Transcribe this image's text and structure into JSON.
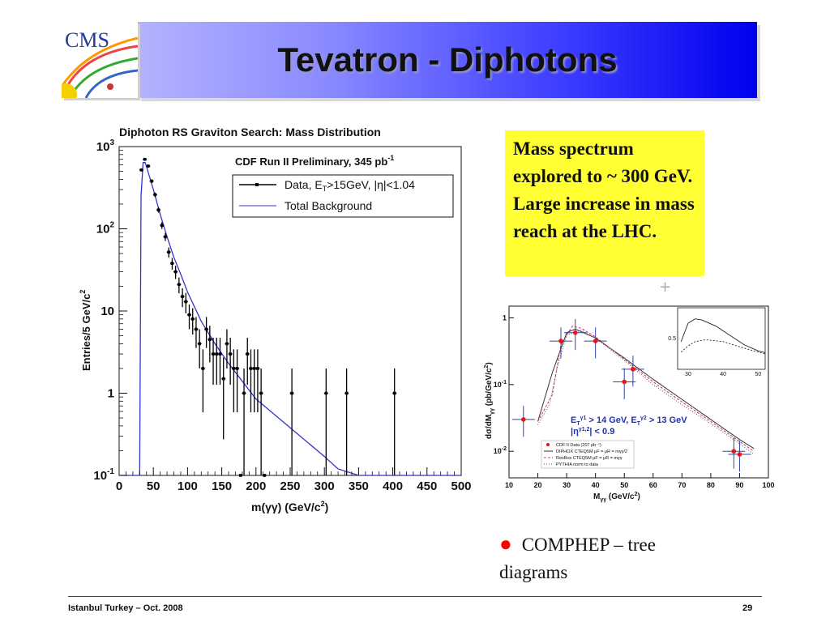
{
  "slide": {
    "title": "Tevatron - Diphotons",
    "logo_text": "CMS",
    "note": "Mass spectrum explored to ~ 300 GeV. Large increase in mass reach at the LHC.",
    "bullet_text": "COMPHEP – tree diagrams",
    "footer_left": "Istanbul Turkey – Oct. 2008",
    "footer_right": "29",
    "plus_mark": "+"
  },
  "colors": {
    "title_bar_end": "#0000ee",
    "note_bg": "#ffff33",
    "data_line": "#000000",
    "background_line": "#3333cc",
    "bullet": "#ff0000"
  },
  "chart_data": [
    {
      "type": "line",
      "title": "Diphoton RS Graviton Search: Mass Distribution",
      "header": "CDF Run II Preliminary, 345 pb",
      "header_sup": "-1",
      "xlabel": "m(γγ) (GeV/c",
      "xlabel_sup": "2",
      "xlabel_end": ")",
      "ylabel": "Entries/5 GeV/c",
      "ylabel_sup": "2",
      "log_y": true,
      "xlim": [
        0,
        500
      ],
      "ylim": [
        0.1,
        1000
      ],
      "xticks": [
        0,
        50,
        100,
        150,
        200,
        250,
        300,
        350,
        400,
        450,
        500
      ],
      "yticks": [
        {
          "v": 0.1,
          "b": "10",
          "e": "-1"
        },
        {
          "v": 1,
          "b": "1",
          "e": ""
        },
        {
          "v": 10,
          "b": "10",
          "e": ""
        },
        {
          "v": 100,
          "b": "10",
          "e": "2"
        },
        {
          "v": 1000,
          "b": "10",
          "e": "3"
        }
      ],
      "legend": [
        {
          "name": "Data, E",
          "sub": "T",
          "rest": ">15GeV, |η|<1.04"
        },
        {
          "name": "Total Background"
        }
      ],
      "series": [
        {
          "name": "Data",
          "points": [
            [
              32.5,
              520
            ],
            [
              37.5,
              700
            ],
            [
              42.5,
              580
            ],
            [
              47.5,
              380
            ],
            [
              52.5,
              260
            ],
            [
              57.5,
              170
            ],
            [
              62.5,
              110
            ],
            [
              67.5,
              80
            ],
            [
              72.5,
              52
            ],
            [
              77.5,
              38
            ],
            [
              82.5,
              30
            ],
            [
              87.5,
              21
            ],
            [
              92.5,
              15
            ],
            [
              97.5,
              13
            ],
            [
              102.5,
              9
            ],
            [
              107.5,
              8
            ],
            [
              112.5,
              6
            ],
            [
              117.5,
              4
            ],
            [
              122.5,
              2
            ],
            [
              127.5,
              6
            ],
            [
              132.5,
              4.5
            ],
            [
              137.5,
              3
            ],
            [
              142.5,
              3
            ],
            [
              147.5,
              3
            ],
            [
              152.5,
              1.5
            ],
            [
              157.5,
              4
            ],
            [
              162.5,
              3
            ],
            [
              167.5,
              2
            ],
            [
              172.5,
              2
            ],
            [
              177.5,
              0.1
            ],
            [
              182.5,
              1
            ],
            [
              187.5,
              3
            ],
            [
              192.5,
              2
            ],
            [
              197.5,
              2
            ],
            [
              202.5,
              2
            ],
            [
              207.5,
              1
            ],
            [
              212.5,
              0.1
            ],
            [
              252.5,
              1
            ],
            [
              302.5,
              1
            ],
            [
              332.5,
              1
            ],
            [
              402.5,
              1
            ]
          ]
        },
        {
          "name": "Total Background",
          "points": [
            [
              0,
              0.1
            ],
            [
              30,
              0.1
            ],
            [
              32,
              250
            ],
            [
              35,
              640
            ],
            [
              38,
              640
            ],
            [
              40,
              570
            ],
            [
              50,
              300
            ],
            [
              60,
              150
            ],
            [
              70,
              80
            ],
            [
              80,
              45
            ],
            [
              90,
              28
            ],
            [
              100,
              17
            ],
            [
              120,
              7.5
            ],
            [
              140,
              4
            ],
            [
              160,
              2.3
            ],
            [
              180,
              1.4
            ],
            [
              200,
              0.85
            ],
            [
              250,
              0.38
            ],
            [
              300,
              0.17
            ],
            [
              320,
              0.12
            ],
            [
              350,
              0.1
            ],
            [
              500,
              0.1
            ]
          ]
        }
      ]
    },
    {
      "type": "line",
      "xlabel": "M",
      "xlabel_sub": "γγ",
      "xlabel_rest": " (GeV/c",
      "xlabel_sup": "2",
      "xlabel_end": ")",
      "ylabel": "dσ/dM",
      "ylabel_sub": "γγ",
      "ylabel_rest": " (pb/GeV/c",
      "ylabel_sup": "2",
      "ylabel_end": ")",
      "log_y": true,
      "xlim": [
        10,
        100
      ],
      "ylim": [
        0.004,
        1.5
      ],
      "xticks": [
        10,
        20,
        30,
        40,
        50,
        60,
        70,
        80,
        90,
        100
      ],
      "yticks": [
        {
          "v": 1,
          "b": "1",
          "e": ""
        },
        {
          "v": 0.1,
          "b": "10",
          "e": "-1"
        },
        {
          "v": 0.01,
          "b": "10",
          "e": "-2"
        }
      ],
      "cut_text_1": "E",
      "cut_text_1b": "T",
      "cut_text_1c": "γ1",
      "cut_text_1d": " > 14 GeV, E",
      "cut_text_1e": "T",
      "cut_text_1f": "γ2",
      "cut_text_1g": " > 13 GeV",
      "cut_text_2": "|η",
      "cut_text_2b": "γ1,2",
      "cut_text_2c": "| < 0.9",
      "legend": [
        {
          "name": "CDF II Data (207 pb⁻¹)"
        },
        {
          "name": "DIPHOX CTEQ5M μF = μR = mγγ/2"
        },
        {
          "name": "ResBos CTEQ5M μF = μR = mγγ"
        },
        {
          "name": "PYTHIA norm to data"
        }
      ],
      "series": [
        {
          "name": "CDF II Data",
          "points": [
            [
              15,
              0.03
            ],
            [
              28,
              0.45
            ],
            [
              33,
              0.6
            ],
            [
              40,
              0.45
            ],
            [
              50,
              0.11
            ],
            [
              53,
              0.17
            ],
            [
              88,
              0.01
            ],
            [
              90,
              0.009
            ]
          ]
        },
        {
          "name": "DIPHOX",
          "points": [
            [
              20,
              0.028
            ],
            [
              25,
              0.15
            ],
            [
              30,
              0.6
            ],
            [
              33,
              0.68
            ],
            [
              40,
              0.5
            ],
            [
              50,
              0.25
            ],
            [
              60,
              0.12
            ],
            [
              70,
              0.06
            ],
            [
              80,
              0.03
            ],
            [
              90,
              0.015
            ],
            [
              95,
              0.011
            ]
          ]
        },
        {
          "name": "ResBos",
          "points": [
            [
              20,
              0.028
            ],
            [
              25,
              0.07
            ],
            [
              28,
              0.4
            ],
            [
              32,
              0.75
            ],
            [
              35,
              0.7
            ],
            [
              40,
              0.52
            ],
            [
              50,
              0.24
            ],
            [
              60,
              0.11
            ],
            [
              70,
              0.055
            ],
            [
              80,
              0.028
            ],
            [
              90,
              0.014
            ],
            [
              95,
              0.01
            ]
          ]
        },
        {
          "name": "PYTHIA",
          "points": [
            [
              20,
              0.025
            ],
            [
              24,
              0.05
            ],
            [
              27,
              0.2
            ],
            [
              30,
              0.55
            ],
            [
              35,
              0.65
            ],
            [
              40,
              0.5
            ],
            [
              50,
              0.23
            ],
            [
              60,
              0.1
            ],
            [
              70,
              0.05
            ],
            [
              80,
              0.026
            ],
            [
              90,
              0.013
            ],
            [
              95,
              0.009
            ]
          ]
        }
      ],
      "inset": {
        "xticks": [
          30,
          40,
          50
        ],
        "yticks": [
          0.5
        ],
        "xlim": [
          27,
          52
        ],
        "ylim": [
          0,
          1
        ],
        "series": [
          {
            "points": [
              [
                28,
                0.45
              ],
              [
                30,
                0.75
              ],
              [
                32,
                0.82
              ],
              [
                34,
                0.8
              ],
              [
                38,
                0.7
              ],
              [
                42,
                0.55
              ],
              [
                46,
                0.4
              ],
              [
                50,
                0.3
              ],
              [
                52,
                0.27
              ]
            ]
          },
          {
            "points": [
              [
                28,
                0.28
              ],
              [
                30,
                0.38
              ],
              [
                32,
                0.45
              ],
              [
                35,
                0.48
              ],
              [
                40,
                0.45
              ],
              [
                45,
                0.36
              ],
              [
                50,
                0.28
              ],
              [
                52,
                0.25
              ]
            ]
          }
        ]
      }
    }
  ]
}
